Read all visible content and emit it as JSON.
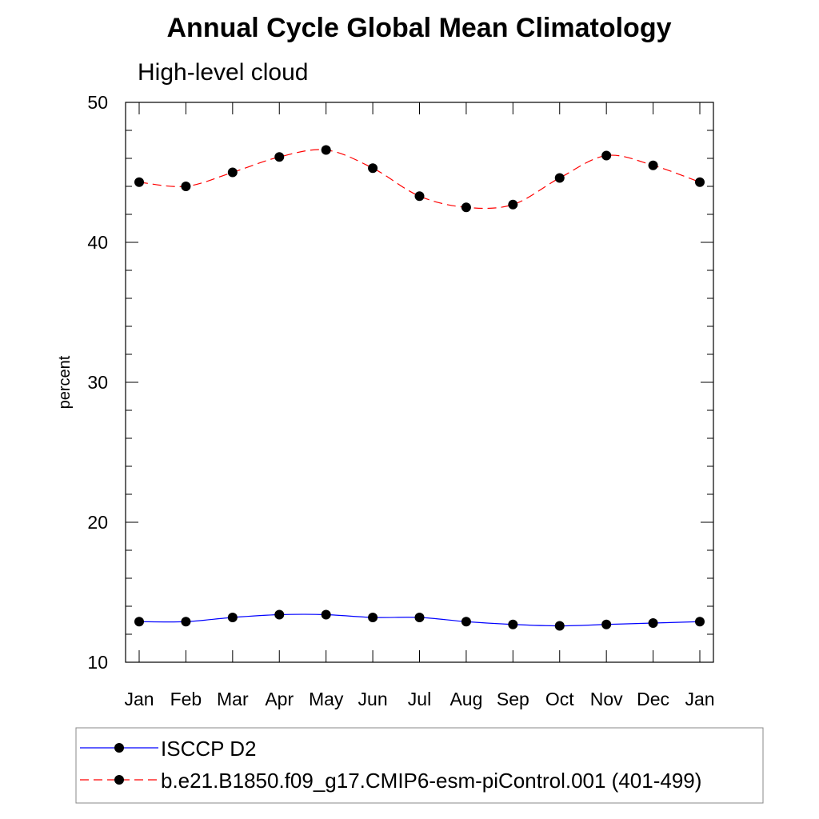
{
  "chart_data": {
    "type": "line",
    "title": "Annual Cycle Global Mean Climatology",
    "subtitle": "High-level cloud",
    "xlabel": "",
    "ylabel": "percent",
    "categories": [
      "Jan",
      "Feb",
      "Mar",
      "Apr",
      "May",
      "Jun",
      "Jul",
      "Aug",
      "Sep",
      "Oct",
      "Nov",
      "Dec",
      "Jan"
    ],
    "ylim": [
      10,
      50
    ],
    "yticks": [
      "10",
      "20",
      "30",
      "40",
      "50"
    ],
    "grid": false,
    "legend_position": "bottom",
    "series": [
      {
        "name": "ISCCP D2",
        "color": "#0000ff",
        "dash": "solid",
        "values": [
          12.9,
          12.9,
          13.2,
          13.4,
          13.4,
          13.2,
          13.2,
          12.9,
          12.7,
          12.6,
          12.7,
          12.8,
          12.9
        ]
      },
      {
        "name": "b.e21.B1850.f09_g17.CMIP6-esm-piControl.001 (401-499)",
        "color": "#ff0000",
        "dash": "dashed",
        "values": [
          44.3,
          44.0,
          45.0,
          46.1,
          46.6,
          45.3,
          43.3,
          42.5,
          42.7,
          44.6,
          46.2,
          45.5,
          44.3
        ]
      }
    ]
  }
}
